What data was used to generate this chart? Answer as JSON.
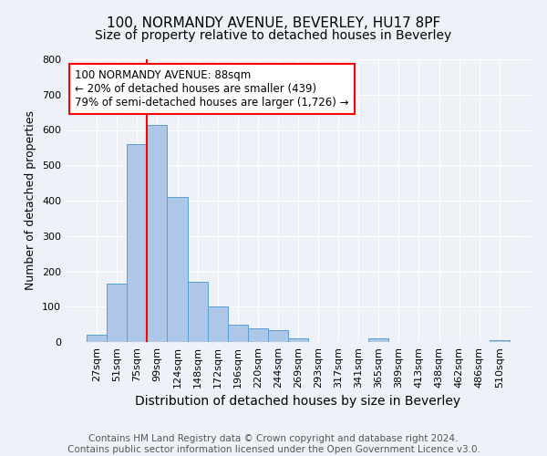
{
  "title": "100, NORMANDY AVENUE, BEVERLEY, HU17 8PF",
  "subtitle": "Size of property relative to detached houses in Beverley",
  "xlabel": "Distribution of detached houses by size in Beverley",
  "ylabel": "Number of detached properties",
  "bin_labels": [
    "27sqm",
    "51sqm",
    "75sqm",
    "99sqm",
    "124sqm",
    "148sqm",
    "172sqm",
    "196sqm",
    "220sqm",
    "244sqm",
    "269sqm",
    "293sqm",
    "317sqm",
    "341sqm",
    "365sqm",
    "389sqm",
    "413sqm",
    "438sqm",
    "462sqm",
    "486sqm",
    "510sqm"
  ],
  "bar_heights": [
    20,
    165,
    560,
    615,
    410,
    170,
    100,
    50,
    40,
    33,
    10,
    0,
    0,
    0,
    10,
    0,
    0,
    0,
    0,
    0,
    5
  ],
  "bar_color": "#aec6e8",
  "bar_edge_color": "#5a9fd4",
  "vline_color": "red",
  "annotation_text": "100 NORMANDY AVENUE: 88sqm\n← 20% of detached houses are smaller (439)\n79% of semi-detached houses are larger (1,726) →",
  "annotation_box_color": "white",
  "annotation_box_edge_color": "red",
  "ylim": [
    0,
    800
  ],
  "yticks": [
    0,
    100,
    200,
    300,
    400,
    500,
    600,
    700,
    800
  ],
  "footer_text": "Contains HM Land Registry data © Crown copyright and database right 2024.\nContains public sector information licensed under the Open Government Licence v3.0.",
  "background_color": "#eef2f8",
  "plot_background_color": "#eef2f8",
  "title_fontsize": 11,
  "subtitle_fontsize": 10,
  "xlabel_fontsize": 10,
  "ylabel_fontsize": 9,
  "footer_fontsize": 7.5,
  "tick_fontsize": 8,
  "annotation_fontsize": 8.5,
  "vline_pos": 2.5
}
